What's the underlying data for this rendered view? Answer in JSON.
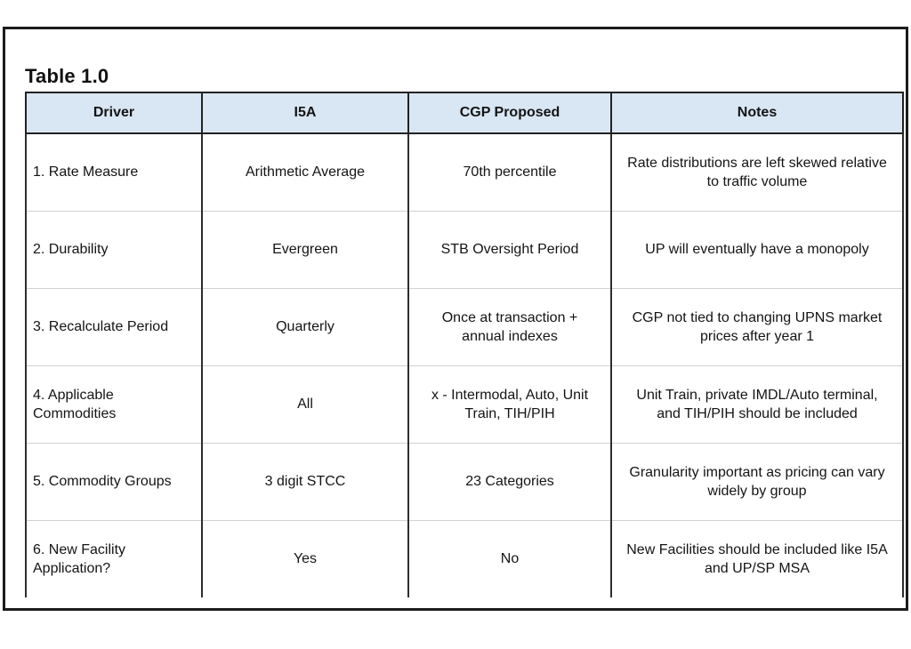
{
  "page": {
    "title": "Table 1.0"
  },
  "table": {
    "header_bg": "#d9e6f3",
    "columns": [
      "Driver",
      "I5A",
      "CGP Proposed",
      "Notes"
    ],
    "rows": [
      {
        "driver": "1. Rate Measure",
        "i5a": "Arithmetic Average",
        "cgp": "70th percentile",
        "notes": "Rate distributions are left skewed relative to traffic volume"
      },
      {
        "driver": "2. Durability",
        "i5a": "Evergreen",
        "cgp": "STB Oversight Period",
        "notes": "UP will eventually have a monopoly"
      },
      {
        "driver": "3. Recalculate Period",
        "i5a": "Quarterly",
        "cgp": "Once at transaction + annual indexes",
        "notes": "CGP not tied to changing UPNS market prices after year 1"
      },
      {
        "driver": "4. Applicable Commodities",
        "i5a": "All",
        "cgp": "x - Intermodal, Auto, Unit Train, TIH/PIH",
        "notes": "Unit Train, private IMDL/Auto terminal, and TIH/PIH should be included"
      },
      {
        "driver": "5. Commodity Groups",
        "i5a": "3 digit STCC",
        "cgp": "23 Categories",
        "notes": "Granularity important as pricing can vary widely by group"
      },
      {
        "driver": "6. New Facility Application?",
        "i5a": "Yes",
        "cgp": "No",
        "notes": "New Facilities should be included like I5A and UP/SP MSA"
      }
    ]
  }
}
